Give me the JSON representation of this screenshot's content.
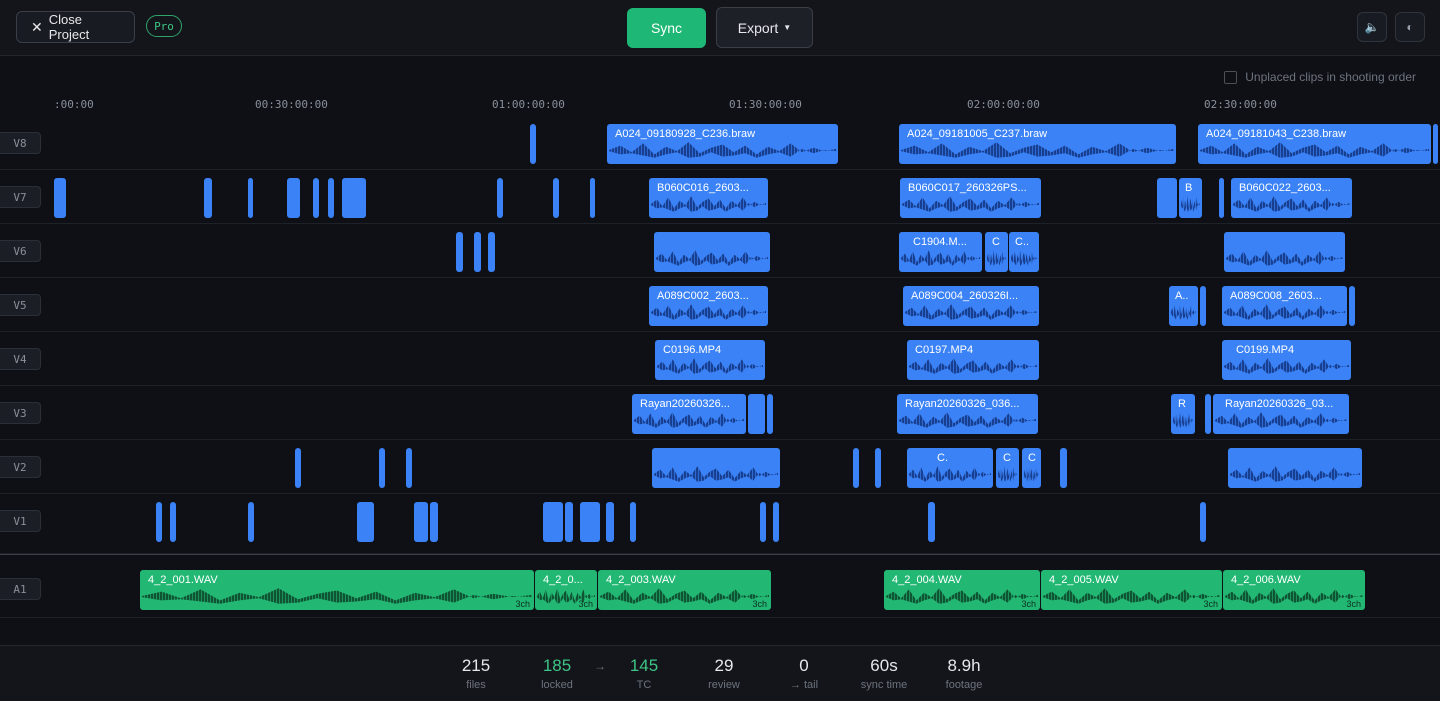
{
  "header": {
    "close_label": "Close Project",
    "pro_badge": "Pro",
    "sync_label": "Sync",
    "export_label": "Export",
    "volume_icon": "speaker-icon",
    "theme_icon": "half-circle-icon"
  },
  "options": {
    "unplaced_label": "Unplaced clips in shooting order",
    "unplaced_checked": false
  },
  "ruler": {
    "ticks": [
      ":00:00",
      "00:30:00:00",
      "01:00:00:00",
      "01:30:00:00",
      "02:00:00:00",
      "02:30:00:00"
    ]
  },
  "tracks": {
    "video": [
      {
        "label": "V8",
        "clips": [
          "A024_09180928_C236.braw",
          "A024_09181005_C237.braw",
          "A024_09181043_C238.braw"
        ]
      },
      {
        "label": "V7",
        "clips": [
          "B060C016_2603...",
          "B060C017_260326PS...",
          "B",
          "B060C022_2603..."
        ]
      },
      {
        "label": "V6",
        "clips": [
          "C1904.M...",
          "C",
          "C.."
        ]
      },
      {
        "label": "V5",
        "clips": [
          "A089C002_2603...",
          "A089C004_260326I...",
          "A..",
          "A089C008_2603..."
        ]
      },
      {
        "label": "V4",
        "clips": [
          "C0196.MP4",
          "C0197.MP4",
          "C0199.MP4"
        ]
      },
      {
        "label": "V3",
        "clips": [
          "Rayan20260326...",
          "Rayan20260326_036...",
          "R",
          "Rayan20260326_03..."
        ]
      },
      {
        "label": "V2",
        "clips": [
          "C.",
          "C",
          "C"
        ]
      },
      {
        "label": "V1",
        "clips": []
      }
    ],
    "audio": [
      {
        "label": "A1",
        "clips": [
          {
            "name": "4_2_001.WAV",
            "ch": "3ch"
          },
          {
            "name": "4_2_0...",
            "ch": "3ch"
          },
          {
            "name": "4_2_003.WAV",
            "ch": "3ch"
          },
          {
            "name": "4_2_004.WAV",
            "ch": "3ch"
          },
          {
            "name": "4_2_005.WAV",
            "ch": "3ch"
          },
          {
            "name": "4_2_006.WAV",
            "ch": "3ch"
          }
        ]
      }
    ]
  },
  "stats": {
    "files": {
      "value": "215",
      "label": "files"
    },
    "locked": {
      "value": "185",
      "label": "locked"
    },
    "tc": {
      "value": "145",
      "label": "TC"
    },
    "review": {
      "value": "29",
      "label": "review"
    },
    "tail": {
      "value": "0",
      "label": "→ tail"
    },
    "sync_time": {
      "value": "60s",
      "label": "sync time"
    },
    "footage": {
      "value": "8.9h",
      "label": "footage"
    }
  },
  "colors": {
    "video_clip": "#3a82f6",
    "audio_clip": "#22b873",
    "accent": "#1fb775",
    "background": "#0e1016"
  }
}
